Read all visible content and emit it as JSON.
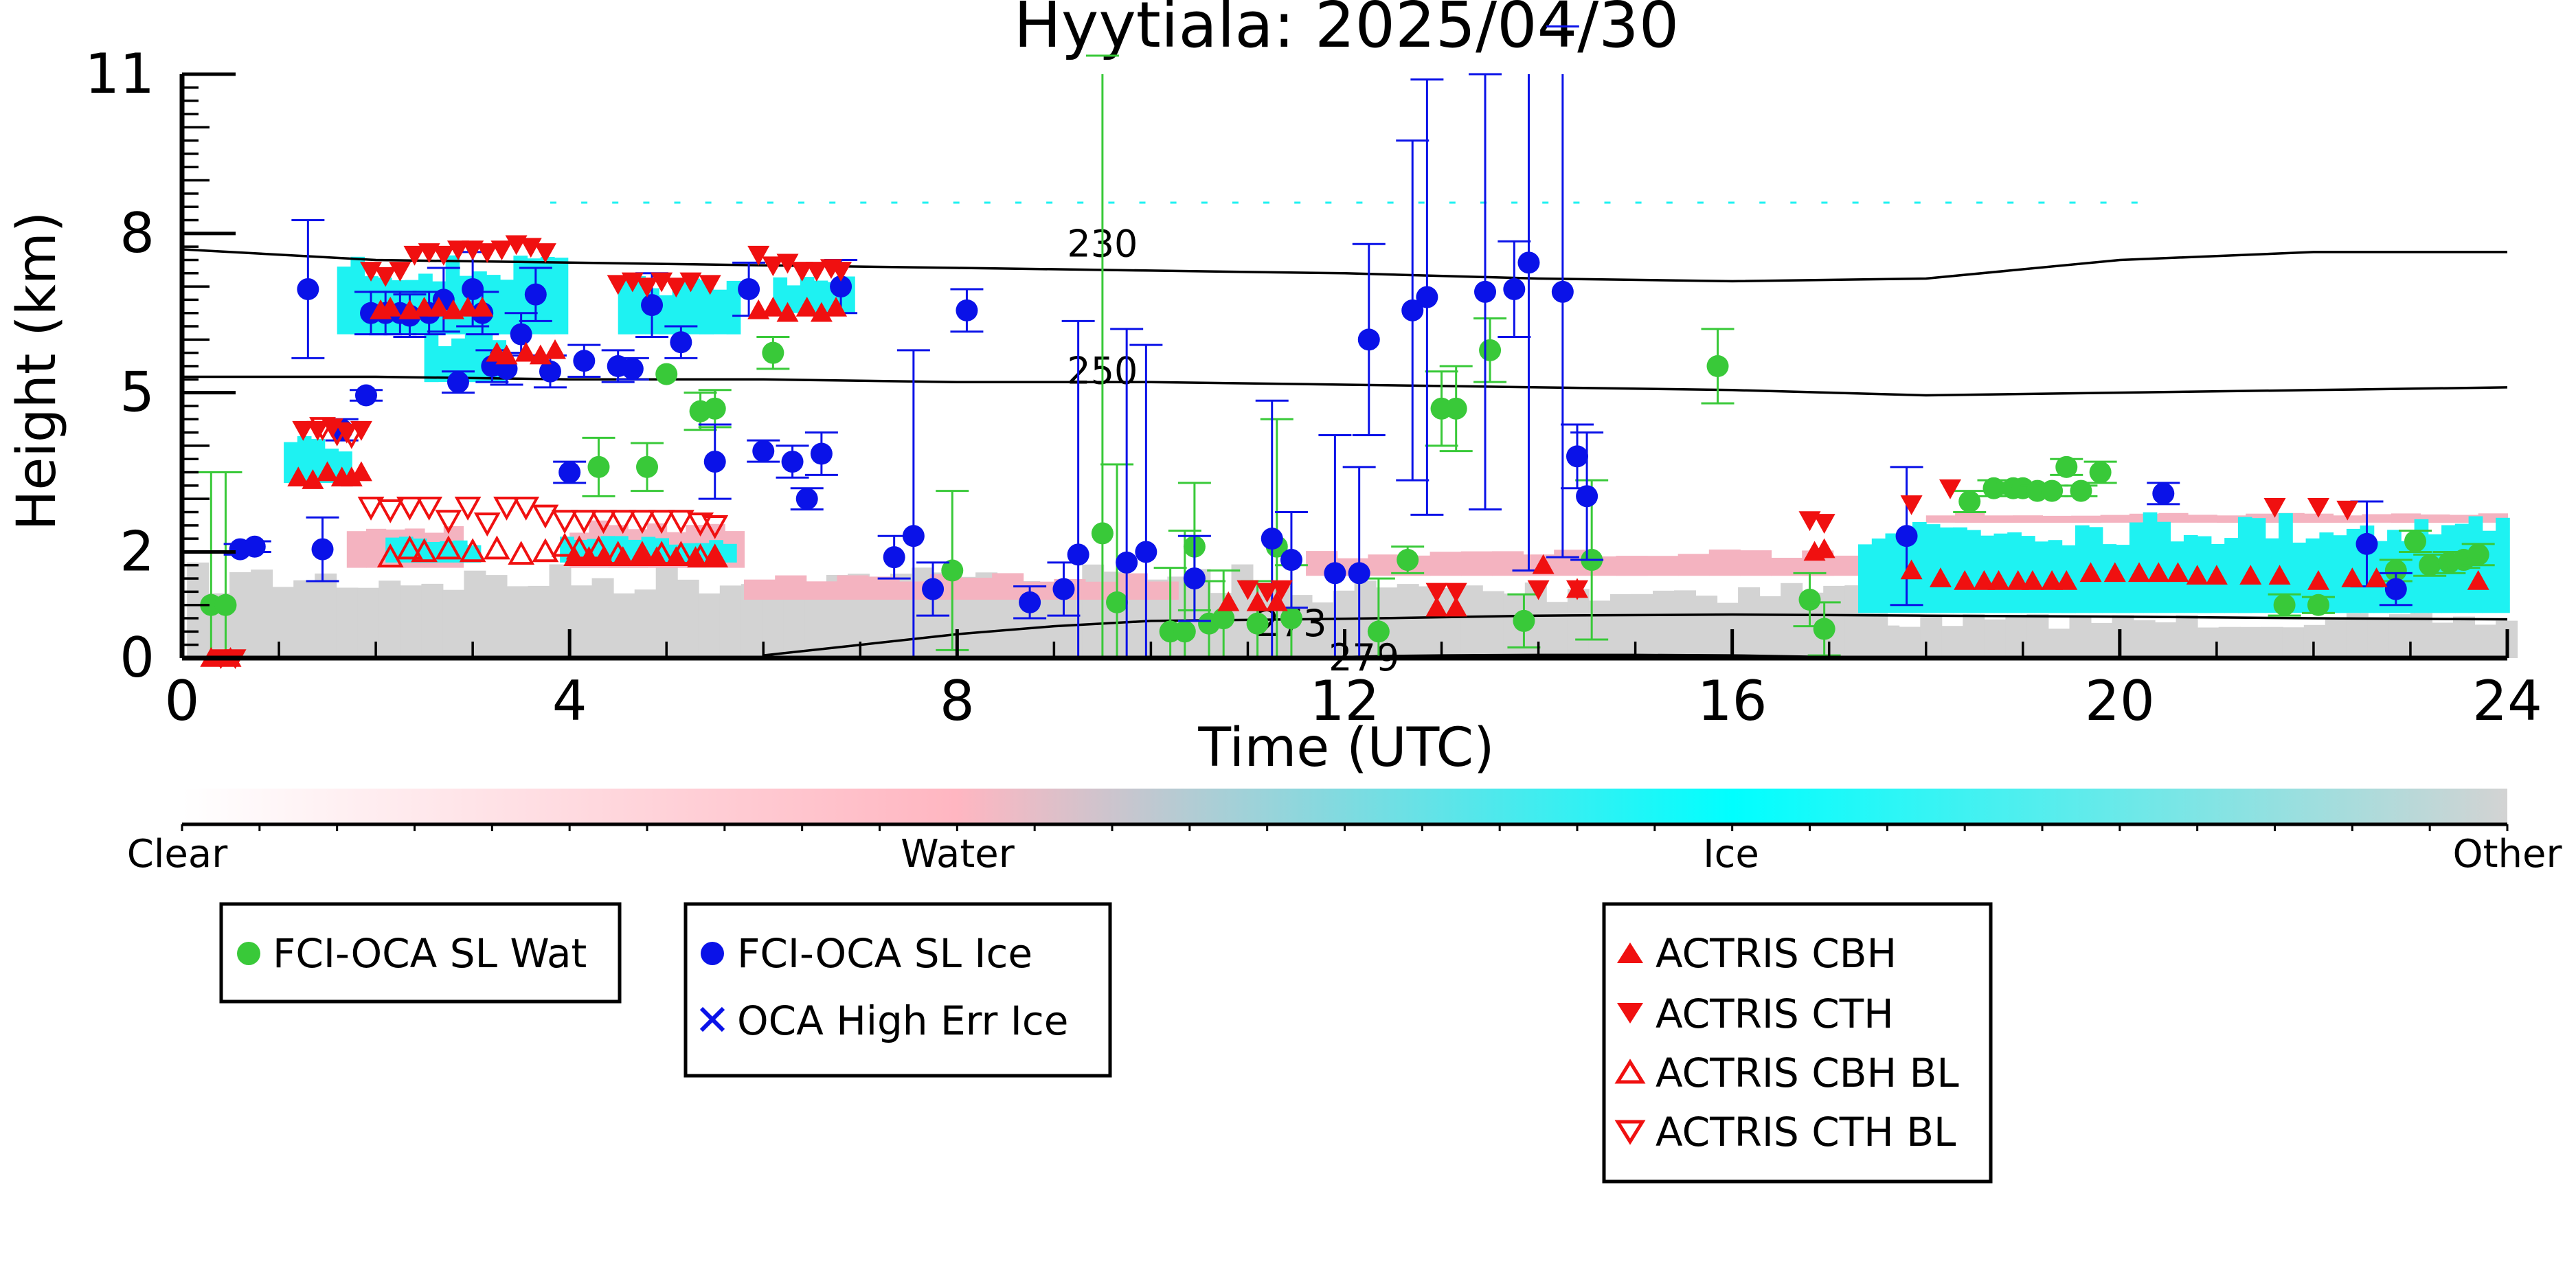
{
  "chart_data": {
    "type": "scatter",
    "title": "Hyytiala: 2025/04/30",
    "xlabel": "Time (UTC)",
    "ylabel": "Height (km)",
    "xlim": [
      0,
      24
    ],
    "ylim": [
      0,
      11
    ],
    "x_ticks": [
      "0",
      "4",
      "8",
      "12",
      "16",
      "20",
      "24"
    ],
    "y_ticks": [
      "0",
      "2",
      "5",
      "8",
      "11"
    ],
    "grid": false,
    "colors": {
      "water": "#39c939",
      "ice": "#0a12e8",
      "actris": "#f01010",
      "cyan": "#1ef2f2",
      "pink": "#f4b3c0",
      "gray": "#d3d3d3"
    },
    "colorbar": {
      "labels": [
        "Clear",
        "Water",
        "Ice",
        "Other"
      ],
      "stops": [
        "#ffffff",
        "#ffb6c1",
        "#00ffff",
        "#d3d3d3"
      ]
    },
    "contours": [
      {
        "label": "230",
        "x": [
          0,
          2,
          4,
          6,
          8,
          10,
          12,
          14,
          16,
          18,
          20,
          22,
          24
        ],
        "y": [
          7.7,
          7.5,
          7.45,
          7.4,
          7.35,
          7.3,
          7.25,
          7.15,
          7.1,
          7.15,
          7.5,
          7.65,
          7.65
        ]
      },
      {
        "label": "250",
        "x": [
          0,
          2,
          4,
          6,
          8,
          10,
          12,
          14,
          16,
          18,
          20,
          22,
          24
        ],
        "y": [
          5.3,
          5.3,
          5.25,
          5.25,
          5.2,
          5.2,
          5.15,
          5.1,
          5.05,
          4.95,
          5.0,
          5.05,
          5.1
        ]
      },
      {
        "label": "273",
        "x": [
          6,
          7,
          8,
          9,
          10,
          11,
          12,
          13,
          14,
          16,
          18,
          20,
          22,
          24
        ],
        "y": [
          0.05,
          0.25,
          0.45,
          0.6,
          0.7,
          0.72,
          0.74,
          0.77,
          0.8,
          0.82,
          0.8,
          0.78,
          0.75,
          0.73
        ]
      },
      {
        "label": "279",
        "x": [
          11.5,
          12,
          12.5,
          13,
          14,
          15,
          16,
          17,
          18
        ],
        "y": [
          0.0,
          0.02,
          0.04,
          0.05,
          0.06,
          0.06,
          0.05,
          0.02,
          0.0
        ]
      }
    ],
    "series": [
      {
        "name": "FCI-OCA SL Wat",
        "marker": "circle",
        "x": [
          0.3,
          0.45,
          4.3,
          4.8,
          5.0,
          5.35,
          5.5,
          6.1,
          7.95,
          9.5,
          9.65,
          10.2,
          10.35,
          10.45,
          10.6,
          10.75,
          11.1,
          11.3,
          11.45,
          12.35,
          12.65,
          13.0,
          13.15,
          13.5,
          13.85,
          14.55,
          15.85,
          16.8,
          16.95,
          18.45,
          18.7,
          18.9,
          19.0,
          19.15,
          19.3,
          19.45,
          19.6,
          19.8,
          21.7,
          22.05,
          22.85,
          23.05,
          23.2,
          23.4,
          23.55,
          23.7
        ],
        "y": [
          1.0,
          1.0,
          3.6,
          3.6,
          5.35,
          4.65,
          4.7,
          5.75,
          1.65,
          2.35,
          1.05,
          0.5,
          0.5,
          2.1,
          0.65,
          0.75,
          0.65,
          2.1,
          0.75,
          0.5,
          1.85,
          4.7,
          4.7,
          5.8,
          0.7,
          1.85,
          5.5,
          1.1,
          0.55,
          2.95,
          3.2,
          3.2,
          3.2,
          3.15,
          3.15,
          3.6,
          3.15,
          3.5,
          1.0,
          1.0,
          1.65,
          2.2,
          1.75,
          1.8,
          1.85,
          1.95
        ],
        "yerr": [
          2.5,
          2.5,
          0.55,
          0.45,
          0.0,
          0.35,
          0.35,
          0.3,
          1.5,
          9.0,
          2.6,
          1.2,
          1.9,
          1.2,
          0.8,
          0.9,
          0.8,
          2.4,
          1.0,
          1.0,
          0.25,
          0.7,
          0.8,
          0.6,
          0.5,
          1.5,
          0.7,
          0.5,
          0.5,
          0.2,
          0.15,
          0.1,
          0.1,
          0.1,
          0.1,
          0.15,
          0.1,
          0.2,
          0.2,
          0.15,
          0.2,
          0.2,
          0.2,
          0.2,
          0.15,
          0.2
        ]
      },
      {
        "name": "FCI-OCA SL Ice",
        "marker": "circle",
        "x": [
          0.6,
          0.75,
          1.3,
          1.45,
          1.65,
          1.9,
          1.95,
          2.1,
          2.25,
          2.35,
          2.55,
          2.7,
          2.85,
          3.0,
          3.1,
          3.2,
          3.35,
          3.5,
          3.65,
          3.8,
          4.0,
          4.15,
          4.5,
          4.65,
          4.85,
          5.15,
          5.5,
          5.85,
          6.0,
          6.3,
          6.45,
          6.6,
          6.8,
          7.35,
          7.55,
          7.75,
          8.1,
          8.75,
          9.1,
          9.25,
          9.75,
          9.95,
          10.45,
          11.25,
          11.45,
          11.9,
          12.15,
          12.25,
          12.7,
          12.85,
          13.45,
          13.75,
          13.9,
          14.25,
          14.4,
          14.5,
          17.8,
          20.45,
          22.55,
          22.85
        ],
        "y": [
          2.05,
          2.1,
          6.95,
          2.05,
          4.3,
          4.95,
          6.5,
          6.5,
          6.5,
          6.45,
          6.5,
          6.75,
          5.2,
          6.95,
          6.5,
          5.5,
          5.45,
          6.1,
          6.85,
          5.4,
          3.5,
          5.6,
          5.5,
          5.45,
          6.65,
          5.95,
          3.7,
          6.95,
          3.9,
          3.7,
          3.0,
          3.85,
          7.0,
          1.9,
          2.3,
          1.3,
          6.55,
          1.05,
          1.3,
          1.95,
          1.8,
          2.0,
          1.5,
          2.25,
          1.85,
          1.6,
          1.6,
          6.0,
          6.55,
          6.8,
          6.9,
          6.95,
          7.45,
          6.9,
          3.8,
          3.05,
          2.3,
          3.1,
          2.15,
          1.3
        ],
        "yerr": [
          0.1,
          0.1,
          1.3,
          0.6,
          0.2,
          0.1,
          0.4,
          0.4,
          0.4,
          0.4,
          0.4,
          0.6,
          0.2,
          0.7,
          0.4,
          0.3,
          0.3,
          0.4,
          0.5,
          0.3,
          0.2,
          0.3,
          0.3,
          0.2,
          0.6,
          0.3,
          0.7,
          0.5,
          0.2,
          0.3,
          0.2,
          0.4,
          0.5,
          0.4,
          3.5,
          0.5,
          0.4,
          0.3,
          0.5,
          4.4,
          4.4,
          3.9,
          0.8,
          2.6,
          0.9,
          2.6,
          2.0,
          1.8,
          3.2,
          4.1,
          4.1,
          0.9,
          5.8,
          5.0,
          0.6,
          1.2,
          1.3,
          0.2,
          0.8,
          0.3
        ]
      },
      {
        "name": "OCA High Err Ice",
        "marker": "x",
        "x": [],
        "y": []
      },
      {
        "name": "ACTRIS CBH",
        "marker": "triangle-up",
        "x": [
          0.3,
          0.5,
          1.2,
          1.35,
          1.5,
          1.65,
          1.75,
          1.85,
          2.05,
          2.15,
          2.35,
          2.5,
          2.65,
          2.8,
          2.95,
          3.1,
          3.25,
          3.35,
          3.55,
          3.7,
          3.85,
          4.05,
          4.2,
          4.35,
          4.55,
          4.75,
          4.9,
          5.1,
          5.3,
          5.5,
          5.95,
          6.1,
          6.25,
          6.45,
          6.6,
          6.75,
          10.8,
          11.1,
          11.3,
          12.95,
          13.15,
          14.05,
          14.4,
          16.85,
          16.95,
          17.85,
          18.15,
          18.4,
          18.6,
          18.75,
          18.95,
          19.1,
          19.3,
          19.45,
          19.7,
          19.95,
          20.2,
          20.4,
          20.6,
          20.8,
          21.0,
          21.35,
          21.65,
          22.05,
          22.4,
          22.65,
          23.7
        ],
        "y": [
          0.0,
          0.0,
          3.4,
          3.35,
          3.5,
          3.4,
          3.4,
          3.5,
          6.55,
          6.6,
          6.55,
          6.6,
          6.6,
          6.55,
          6.6,
          6.6,
          5.75,
          5.7,
          5.75,
          5.7,
          5.8,
          1.9,
          1.9,
          1.9,
          1.9,
          1.9,
          1.9,
          1.9,
          1.9,
          1.9,
          6.55,
          6.6,
          6.5,
          6.6,
          6.5,
          6.6,
          1.05,
          1.05,
          1.05,
          0.95,
          0.95,
          1.75,
          1.3,
          2.0,
          2.05,
          1.65,
          1.5,
          1.45,
          1.45,
          1.45,
          1.45,
          1.45,
          1.45,
          1.45,
          1.6,
          1.6,
          1.6,
          1.6,
          1.6,
          1.55,
          1.55,
          1.55,
          1.55,
          1.45,
          1.5,
          1.5,
          1.45
        ],
        "yerr": []
      },
      {
        "name": "ACTRIS CTH",
        "marker": "triangle-down",
        "x": [
          0.4,
          0.55,
          1.25,
          1.4,
          1.55,
          1.7,
          1.85,
          1.95,
          2.1,
          2.25,
          2.4,
          2.55,
          2.7,
          2.85,
          3.0,
          3.15,
          3.3,
          3.45,
          3.6,
          3.75,
          4.5,
          4.65,
          4.8,
          4.95,
          5.1,
          5.25,
          5.45,
          5.95,
          6.1,
          6.25,
          6.4,
          6.55,
          6.7,
          6.8,
          11.0,
          11.2,
          11.35,
          12.95,
          13.15,
          14.0,
          14.4,
          16.8,
          16.95,
          17.85,
          18.25,
          21.6,
          22.05,
          22.35
        ],
        "y": [
          0.0,
          0.0,
          4.3,
          4.3,
          4.35,
          4.25,
          4.3,
          7.3,
          7.2,
          7.3,
          7.6,
          7.65,
          7.6,
          7.7,
          7.7,
          7.65,
          7.7,
          7.8,
          7.75,
          7.65,
          7.05,
          7.1,
          7.0,
          7.1,
          7.0,
          7.1,
          7.05,
          7.6,
          7.4,
          7.45,
          7.3,
          7.3,
          7.35,
          7.3,
          1.3,
          1.25,
          1.3,
          1.25,
          1.25,
          1.3,
          1.3,
          2.6,
          2.55,
          2.9,
          3.2,
          2.85,
          2.85,
          2.8
        ],
        "yerr": []
      },
      {
        "name": "ACTRIS CBH BL",
        "marker": "triangle-up-open",
        "x": [
          2.15,
          2.35,
          2.5,
          2.75,
          3.0,
          3.25,
          3.5,
          3.75,
          3.95,
          4.1,
          4.3,
          4.5,
          4.75,
          4.95,
          5.15,
          5.35,
          5.5
        ],
        "y": [
          1.9,
          2.05,
          2.0,
          2.05,
          2.0,
          2.05,
          1.95,
          2.0,
          2.1,
          2.05,
          2.05,
          1.95,
          1.95,
          1.95,
          1.95,
          1.9,
          1.9
        ],
        "yerr": []
      },
      {
        "name": "ACTRIS CTH BL",
        "marker": "triangle-down-open",
        "x": [
          1.45,
          1.6,
          1.75,
          1.95,
          2.15,
          2.35,
          2.55,
          2.75,
          2.95,
          3.15,
          3.35,
          3.55,
          3.75,
          3.95,
          4.15,
          4.35,
          4.55,
          4.75,
          4.95,
          5.15,
          5.35,
          5.5
        ],
        "y": [
          4.35,
          4.25,
          4.2,
          2.85,
          2.8,
          2.85,
          2.85,
          2.6,
          2.85,
          2.55,
          2.85,
          2.85,
          2.7,
          2.6,
          2.6,
          2.6,
          2.6,
          2.6,
          2.6,
          2.6,
          2.55,
          2.5
        ],
        "yerr": []
      }
    ],
    "legend_placement": "below",
    "legends": [
      [
        "FCI-OCA SL Wat"
      ],
      [
        "FCI-OCA SL Ice",
        "OCA High Err Ice"
      ],
      [
        "ACTRIS CBH",
        "ACTRIS CTH",
        "ACTRIS CBH BL",
        "ACTRIS CTH BL"
      ]
    ]
  }
}
